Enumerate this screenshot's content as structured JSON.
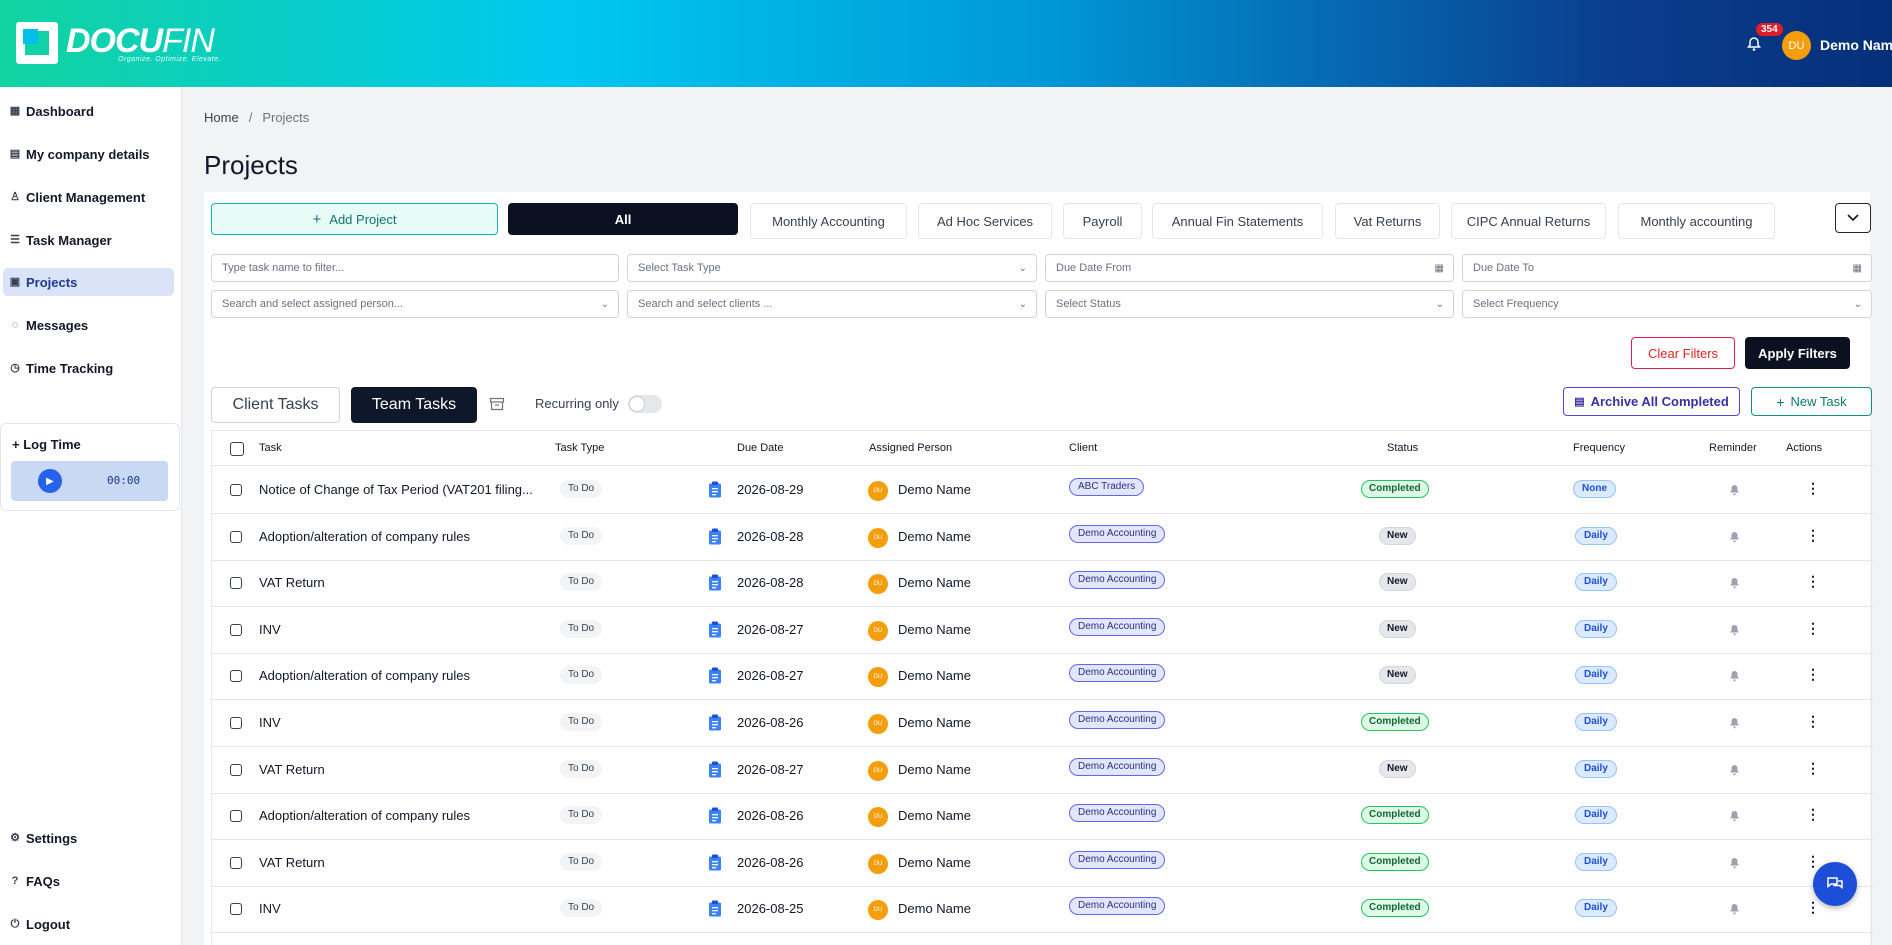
{
  "header": {
    "logo_text_bold": "DOCU",
    "logo_text_light": "FIN",
    "logo_tagline": "Organize. Optimize. Elevate.",
    "notification_count": "354",
    "user_initials": "DU",
    "user_name": "Demo Name"
  },
  "sidebar": {
    "items": [
      {
        "label": "Dashboard",
        "icon": "dashboard-icon"
      },
      {
        "label": "My company details",
        "icon": "building-icon"
      },
      {
        "label": "Client Management",
        "icon": "users-icon"
      },
      {
        "label": "Task Manager",
        "icon": "list-icon"
      },
      {
        "label": "Projects",
        "icon": "clipboard-icon",
        "active": true
      },
      {
        "label": "Messages",
        "icon": "chat-icon"
      },
      {
        "label": "Time Tracking",
        "icon": "clock-icon"
      }
    ],
    "log_time": {
      "title": "+ Log Time",
      "timer": "00:00"
    },
    "bottom_items": [
      {
        "label": "Settings",
        "icon": "gear-icon"
      },
      {
        "label": "FAQs",
        "icon": "help-icon"
      },
      {
        "label": "Logout",
        "icon": "logout-icon"
      }
    ]
  },
  "breadcrumb": {
    "home": "Home",
    "separator": "/",
    "current": "Projects"
  },
  "page_title": "Projects",
  "toolbar": {
    "add_project": "Add Project",
    "categories": [
      "All",
      "Monthly Accounting",
      "Ad Hoc Services",
      "Payroll",
      "Annual Fin Statements",
      "Vat Returns",
      "CIPC Annual Returns",
      "Monthly accounting"
    ]
  },
  "filters": {
    "task_name_placeholder": "Type task name to filter...",
    "task_type": "Select Task Type",
    "due_from": "Due Date From",
    "due_to": "Due Date To",
    "assigned_person": "Search and select assigned person...",
    "clients": "Search and select clients ...",
    "status": "Select Status",
    "frequency": "Select Frequency",
    "clear": "Clear Filters",
    "apply": "Apply Filters"
  },
  "tasks_bar": {
    "client_tasks": "Client Tasks",
    "team_tasks": "Team Tasks",
    "recurring_only": "Recurring only",
    "recurring_enabled": false,
    "archive_all": "Archive All Completed",
    "new_task": "New Task"
  },
  "table": {
    "columns": [
      "Task",
      "Task Type",
      "Due Date",
      "Assigned Person",
      "Client",
      "Status",
      "Frequency",
      "Reminder",
      "Actions"
    ],
    "rows": [
      {
        "task": "Notice of Change of Tax Period (VAT201 filing...",
        "type": "To Do",
        "due": "2026-08-29",
        "person": "Demo Name",
        "initials": "DU",
        "client": "ABC Traders",
        "status": "Completed",
        "frequency": "None"
      },
      {
        "task": "Adoption/alteration of company rules",
        "type": "To Do",
        "due": "2026-08-28",
        "person": "Demo Name",
        "initials": "DU",
        "client": "Demo Accounting",
        "status": "New",
        "frequency": "Daily"
      },
      {
        "task": "VAT Return",
        "type": "To Do",
        "due": "2026-08-28",
        "person": "Demo Name",
        "initials": "DU",
        "client": "Demo Accounting",
        "status": "New",
        "frequency": "Daily"
      },
      {
        "task": "INV",
        "type": "To Do",
        "due": "2026-08-27",
        "person": "Demo Name",
        "initials": "DU",
        "client": "Demo Accounting",
        "status": "New",
        "frequency": "Daily"
      },
      {
        "task": "Adoption/alteration of company rules",
        "type": "To Do",
        "due": "2026-08-27",
        "person": "Demo Name",
        "initials": "DU",
        "client": "Demo Accounting",
        "status": "New",
        "frequency": "Daily"
      },
      {
        "task": "INV",
        "type": "To Do",
        "due": "2026-08-26",
        "person": "Demo Name",
        "initials": "DU",
        "client": "Demo Accounting",
        "status": "Completed",
        "frequency": "Daily"
      },
      {
        "task": "VAT Return",
        "type": "To Do",
        "due": "2026-08-27",
        "person": "Demo Name",
        "initials": "DU",
        "client": "Demo Accounting",
        "status": "New",
        "frequency": "Daily"
      },
      {
        "task": "Adoption/alteration of company rules",
        "type": "To Do",
        "due": "2026-08-26",
        "person": "Demo Name",
        "initials": "DU",
        "client": "Demo Accounting",
        "status": "Completed",
        "frequency": "Daily"
      },
      {
        "task": "VAT Return",
        "type": "To Do",
        "due": "2026-08-26",
        "person": "Demo Name",
        "initials": "DU",
        "client": "Demo Accounting",
        "status": "Completed",
        "frequency": "Daily"
      },
      {
        "task": "INV",
        "type": "To Do",
        "due": "2026-08-25",
        "person": "Demo Name",
        "initials": "DU",
        "client": "Demo Accounting",
        "status": "Completed",
        "frequency": "Daily"
      }
    ]
  },
  "colors": {
    "brand_accent": "#1d4ed8",
    "status_completed": "#22c55e",
    "dark_button": "#0b1120"
  }
}
